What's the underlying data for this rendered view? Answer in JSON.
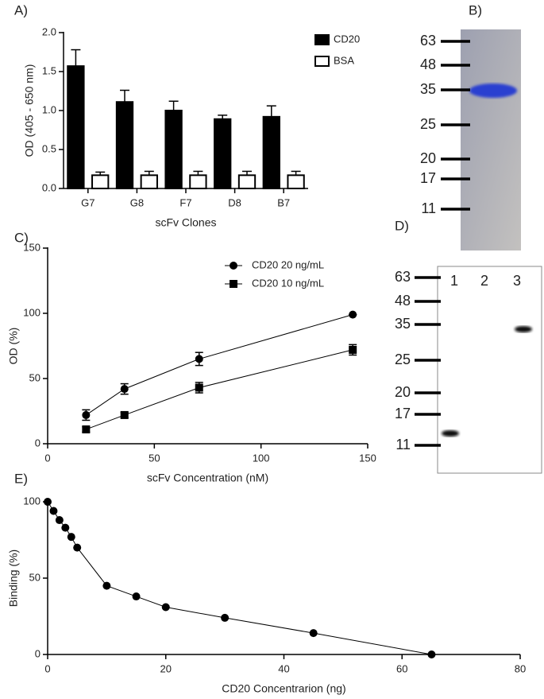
{
  "chart_data": [
    {
      "type": "bar",
      "panel": "A)",
      "ylabel": "OD (405 - 650 nm)",
      "xlabel": "scFv Clones",
      "categories": [
        "G7",
        "G8",
        "F7",
        "D8",
        "B7"
      ],
      "series": [
        {
          "name": "CD20",
          "color": "#000000",
          "values": [
            1.57,
            1.11,
            1.0,
            0.89,
            0.92
          ],
          "errors": [
            0.21,
            0.15,
            0.12,
            0.05,
            0.14
          ]
        },
        {
          "name": "BSA",
          "color": "#ffffff",
          "values": [
            0.17,
            0.17,
            0.17,
            0.17,
            0.17
          ],
          "errors": [
            0.04,
            0.05,
            0.05,
            0.05,
            0.05
          ]
        }
      ],
      "ylim": [
        0,
        2
      ],
      "yticks": [
        {
          "value": 0,
          "label": "0.0"
        },
        0.5,
        {
          "value": 1,
          "label": "1.0"
        },
        1.5,
        {
          "value": 2,
          "label": "2.0"
        }
      ],
      "legend": "upper right"
    },
    {
      "type": "line",
      "panel": "C)",
      "ylabel": "OD (%)",
      "xlabel": "scFv Concentration (nM)",
      "x": [
        18,
        36,
        71,
        143
      ],
      "series": [
        {
          "name": "CD20 20 ng/mL",
          "color": "#000000",
          "marker": "circle",
          "values": [
            22,
            42,
            65,
            99
          ],
          "errors": [
            4,
            4,
            5,
            0
          ]
        },
        {
          "name": "CD20 10 ng/mL",
          "color": "#000000",
          "marker": "square",
          "values": [
            11,
            22,
            43,
            72
          ],
          "errors": [
            2,
            2,
            4,
            4
          ]
        }
      ],
      "xlim": [
        0,
        150
      ],
      "xticks": [
        0,
        50,
        100,
        150
      ],
      "ylim": [
        0,
        150
      ],
      "yticks": [
        0,
        50,
        100,
        150
      ],
      "legend": "upper right"
    },
    {
      "type": "line",
      "panel": "E)",
      "ylabel": "Binding (%)",
      "xlabel": "CD20 Concentrarion (ng)",
      "x": [
        0,
        1,
        2,
        3,
        4,
        5,
        10,
        15,
        20,
        30,
        45,
        65
      ],
      "series": [
        {
          "color": "#000000",
          "marker": "circle",
          "values": [
            100,
            94,
            88,
            83,
            77,
            70,
            45,
            38,
            31,
            24,
            14,
            0
          ]
        }
      ],
      "xlim": [
        0,
        80
      ],
      "xticks": [
        0,
        20,
        40,
        60,
        80
      ],
      "ylim": [
        0,
        100
      ],
      "yticks": [
        0,
        50,
        100
      ]
    }
  ],
  "gels": [
    {
      "panel": "B)",
      "markers": [
        63,
        48,
        35,
        25,
        20,
        17,
        11
      ]
    },
    {
      "panel": "D)",
      "markers": [
        63,
        48,
        35,
        25,
        20,
        17,
        11
      ],
      "lanes": [
        1,
        2,
        3
      ]
    }
  ]
}
